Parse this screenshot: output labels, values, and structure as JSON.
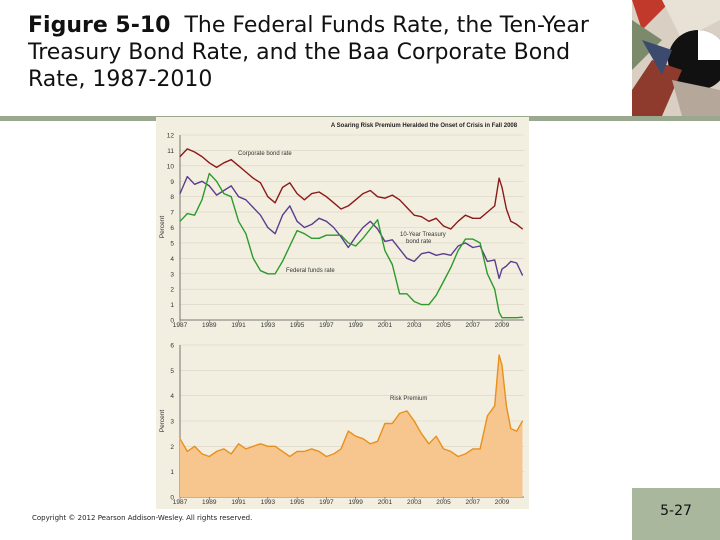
{
  "slide": {
    "figure_label": "Figure 5-10",
    "title_text": "The Federal Funds Rate, the Ten-Year Treasury Bond Rate, and the Baa Corporate Bond Rate, 1987-2010",
    "copyright": "Copyright © 2012 Pearson Addison-Wesley. All rights reserved.",
    "page_number": "5-27"
  },
  "colors": {
    "accent": "#a9b89d",
    "figure_bg": "#f3efe0",
    "corporate": "#8b1a1a",
    "treasury": "#5a3d8f",
    "fedfunds": "#2c9a2c",
    "premium_fill": "#f7c58e",
    "premium_line": "#e8901c"
  },
  "chart_data": [
    {
      "type": "line",
      "title": "A Soaring Risk Premium Heralded the Onset of Crisis in Fall 2008",
      "ylabel": "Percent",
      "xlabel": "",
      "ylim": [
        0,
        12
      ],
      "xlim": [
        1987,
        2010.5
      ],
      "x_ticks": [
        "1987",
        "1989",
        "1991",
        "1993",
        "1995",
        "1997",
        "1999",
        "2001",
        "2003",
        "2005",
        "2007",
        "2009"
      ],
      "y_ticks": [
        "0",
        "1",
        "2",
        "3",
        "4",
        "5",
        "6",
        "7",
        "8",
        "9",
        "10",
        "11",
        "12"
      ],
      "annotations": [
        "Corporate bond rate",
        "10-Year Treasury",
        "bond rate",
        "Federal funds rate"
      ],
      "series": [
        {
          "name": "Corporate bond rate",
          "x": [
            1987,
            1987.5,
            1988,
            1988.5,
            1989,
            1989.5,
            1990,
            1990.5,
            1991,
            1991.5,
            1992,
            1992.5,
            1993,
            1993.5,
            1994,
            1994.5,
            1995,
            1995.5,
            1996,
            1996.5,
            1997,
            1997.5,
            1998,
            1998.5,
            1999,
            1999.5,
            2000,
            2000.5,
            2001,
            2001.5,
            2002,
            2002.5,
            2003,
            2003.5,
            2004,
            2004.5,
            2005,
            2005.5,
            2006,
            2006.5,
            2007,
            2007.5,
            2008,
            2008.5,
            2008.8,
            2009,
            2009.3,
            2009.6,
            2010,
            2010.4
          ],
          "y": [
            10.6,
            11.1,
            10.9,
            10.6,
            10.2,
            9.9,
            10.2,
            10.4,
            10.0,
            9.6,
            9.2,
            8.9,
            8.0,
            7.6,
            8.6,
            8.9,
            8.2,
            7.8,
            8.2,
            8.3,
            8.0,
            7.6,
            7.2,
            7.4,
            7.8,
            8.2,
            8.4,
            8.0,
            7.9,
            8.1,
            7.8,
            7.3,
            6.8,
            6.7,
            6.4,
            6.6,
            6.1,
            5.9,
            6.4,
            6.8,
            6.6,
            6.6,
            7.0,
            7.4,
            9.2,
            8.6,
            7.2,
            6.4,
            6.2,
            5.9
          ]
        },
        {
          "name": "10-Year Treasury bond rate",
          "x": [
            1987,
            1987.5,
            1988,
            1988.5,
            1989,
            1989.5,
            1990,
            1990.5,
            1991,
            1991.5,
            1992,
            1992.5,
            1993,
            1993.5,
            1994,
            1994.5,
            1995,
            1995.5,
            1996,
            1996.5,
            1997,
            1997.5,
            1998,
            1998.5,
            1999,
            1999.5,
            2000,
            2000.5,
            2001,
            2001.5,
            2002,
            2002.5,
            2003,
            2003.5,
            2004,
            2004.5,
            2005,
            2005.5,
            2006,
            2006.5,
            2007,
            2007.5,
            2008,
            2008.5,
            2008.8,
            2009,
            2009.3,
            2009.6,
            2010,
            2010.4
          ],
          "y": [
            8.2,
            9.3,
            8.8,
            9.0,
            8.7,
            8.1,
            8.4,
            8.7,
            8.0,
            7.8,
            7.3,
            6.8,
            6.0,
            5.6,
            6.8,
            7.4,
            6.4,
            6.0,
            6.2,
            6.6,
            6.4,
            6.0,
            5.4,
            4.7,
            5.4,
            6.0,
            6.4,
            5.9,
            5.1,
            5.2,
            4.6,
            4.0,
            3.8,
            4.3,
            4.4,
            4.2,
            4.3,
            4.2,
            4.8,
            5.0,
            4.7,
            4.8,
            3.8,
            3.9,
            2.7,
            3.3,
            3.5,
            3.8,
            3.7,
            2.9
          ]
        },
        {
          "name": "Federal funds rate",
          "x": [
            1987,
            1987.5,
            1988,
            1988.5,
            1989,
            1989.5,
            1990,
            1990.5,
            1991,
            1991.5,
            1992,
            1992.5,
            1993,
            1993.5,
            1994,
            1994.5,
            1995,
            1995.5,
            1996,
            1996.5,
            1997,
            1997.5,
            1998,
            1998.5,
            1999,
            1999.5,
            2000,
            2000.5,
            2001,
            2001.5,
            2002,
            2002.5,
            2003,
            2003.5,
            2004,
            2004.5,
            2005,
            2005.5,
            2006,
            2006.5,
            2007,
            2007.5,
            2008,
            2008.5,
            2008.8,
            2009,
            2009.3,
            2009.6,
            2010,
            2010.4
          ],
          "y": [
            6.4,
            6.9,
            6.8,
            7.8,
            9.5,
            9.0,
            8.2,
            8.0,
            6.4,
            5.6,
            4.0,
            3.2,
            3.0,
            3.0,
            3.8,
            4.8,
            5.8,
            5.6,
            5.3,
            5.3,
            5.5,
            5.5,
            5.5,
            5.0,
            4.8,
            5.3,
            5.9,
            6.5,
            4.5,
            3.6,
            1.7,
            1.7,
            1.2,
            1.0,
            1.0,
            1.6,
            2.5,
            3.4,
            4.5,
            5.25,
            5.25,
            5.0,
            3.0,
            2.0,
            0.5,
            0.15,
            0.15,
            0.15,
            0.15,
            0.18
          ]
        }
      ]
    },
    {
      "type": "area",
      "title": "",
      "ylabel": "Percent",
      "xlabel": "",
      "ylim": [
        0,
        6
      ],
      "xlim": [
        1987,
        2010.5
      ],
      "x_ticks": [
        "1987",
        "1989",
        "1991",
        "1993",
        "1995",
        "1997",
        "1999",
        "2001",
        "2003",
        "2005",
        "2007",
        "2009"
      ],
      "y_ticks": [
        "0",
        "1",
        "2",
        "3",
        "4",
        "5",
        "6"
      ],
      "annotations": [
        "Risk Premium"
      ],
      "series": [
        {
          "name": "Risk Premium",
          "x": [
            1987,
            1987.5,
            1988,
            1988.5,
            1989,
            1989.5,
            1990,
            1990.5,
            1991,
            1991.5,
            1992,
            1992.5,
            1993,
            1993.5,
            1994,
            1994.5,
            1995,
            1995.5,
            1996,
            1996.5,
            1997,
            1997.5,
            1998,
            1998.5,
            1999,
            1999.5,
            2000,
            2000.5,
            2001,
            2001.5,
            2002,
            2002.5,
            2003,
            2003.5,
            2004,
            2004.5,
            2005,
            2005.5,
            2006,
            2006.5,
            2007,
            2007.5,
            2008,
            2008.5,
            2008.8,
            2009,
            2009.3,
            2009.6,
            2010,
            2010.4
          ],
          "y": [
            2.3,
            1.8,
            2.0,
            1.7,
            1.6,
            1.8,
            1.9,
            1.7,
            2.1,
            1.9,
            2.0,
            2.1,
            2.0,
            2.0,
            1.8,
            1.6,
            1.8,
            1.8,
            1.9,
            1.8,
            1.6,
            1.7,
            1.9,
            2.6,
            2.4,
            2.3,
            2.1,
            2.2,
            2.9,
            2.9,
            3.3,
            3.4,
            3.0,
            2.5,
            2.1,
            2.4,
            1.9,
            1.8,
            1.6,
            1.7,
            1.9,
            1.9,
            3.2,
            3.6,
            5.6,
            5.2,
            3.6,
            2.7,
            2.6,
            3.0
          ]
        }
      ]
    }
  ]
}
